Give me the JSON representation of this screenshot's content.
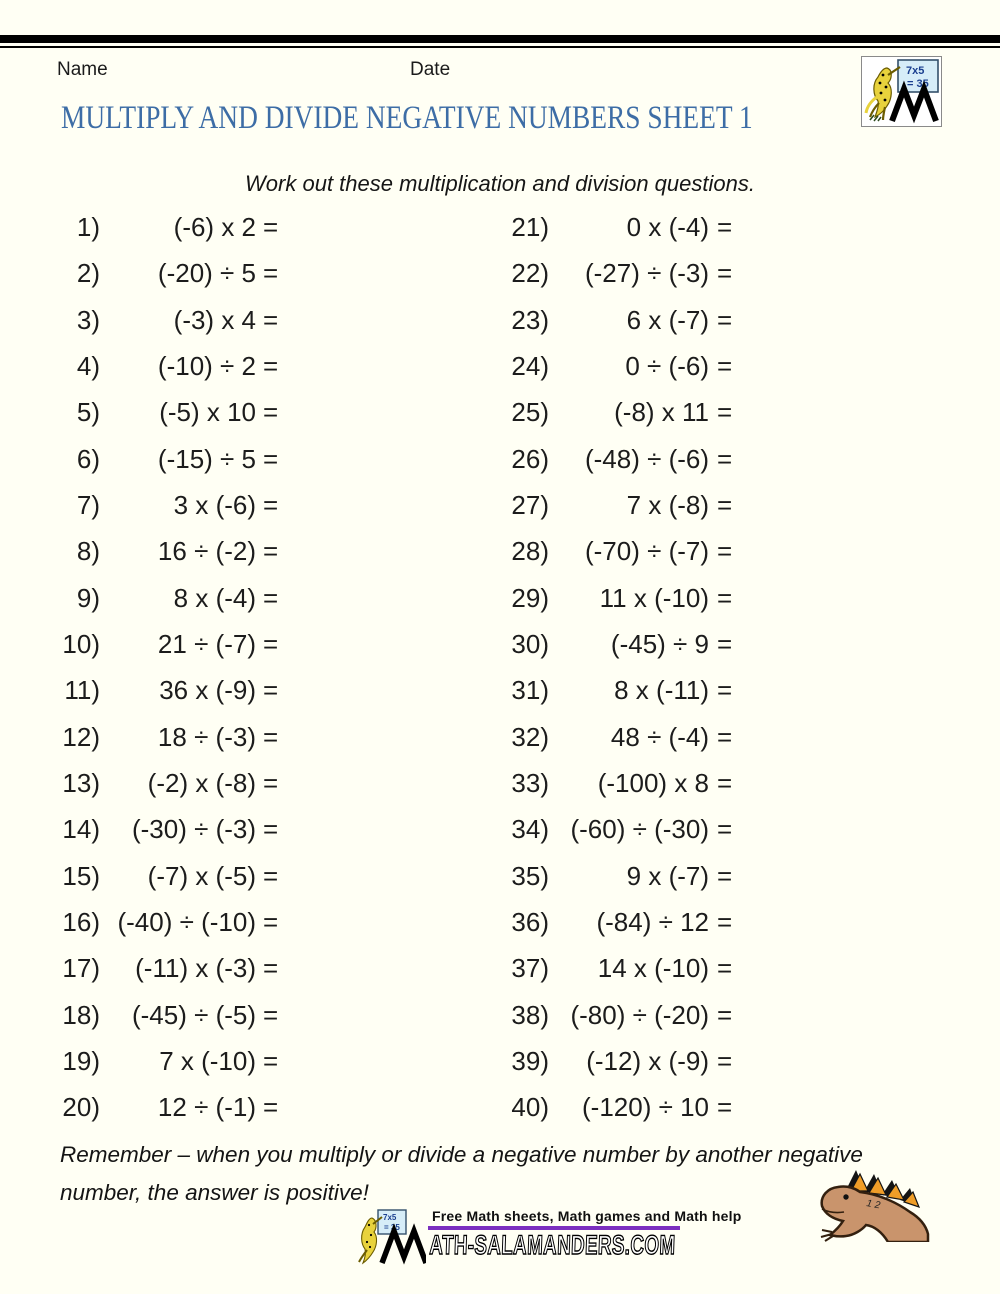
{
  "page": {
    "background": "#fffff4"
  },
  "header": {
    "name_label": "Name",
    "date_label": "Date",
    "title": "MULTIPLY AND DIVIDE NEGATIVE NUMBERS SHEET 1",
    "title_color": "#3d6da6"
  },
  "instruction": "Work out these multiplication and division questions.",
  "logo": {
    "board_top": "7x5",
    "board_bottom": "= 35",
    "salamander_color": "#e8d23c",
    "board_color": "#d6edf8"
  },
  "problems": {
    "equals_sign": "=",
    "left": [
      {
        "num": "1)",
        "expr": "(-6) x 2"
      },
      {
        "num": "2)",
        "expr": "(-20) ÷ 5"
      },
      {
        "num": "3)",
        "expr": "(-3) x 4"
      },
      {
        "num": "4)",
        "expr": "(-10) ÷ 2"
      },
      {
        "num": "5)",
        "expr": "(-5) x 10"
      },
      {
        "num": "6)",
        "expr": "(-15) ÷ 5"
      },
      {
        "num": "7)",
        "expr": "3 x (-6)"
      },
      {
        "num": "8)",
        "expr": "16 ÷ (-2)"
      },
      {
        "num": "9)",
        "expr": "8 x (-4)"
      },
      {
        "num": "10)",
        "expr": "21 ÷ (-7)"
      },
      {
        "num": "11)",
        "expr": "36 x (-9)"
      },
      {
        "num": "12)",
        "expr": "18 ÷ (-3)"
      },
      {
        "num": "13)",
        "expr": "(-2) x (-8)"
      },
      {
        "num": "14)",
        "expr": "(-30) ÷ (-3)"
      },
      {
        "num": "15)",
        "expr": "(-7) x (-5)"
      },
      {
        "num": "16)",
        "expr": "(-40) ÷ (-10)"
      },
      {
        "num": "17)",
        "expr": "(-11) x (-3)"
      },
      {
        "num": "18)",
        "expr": "(-45) ÷ (-5)"
      },
      {
        "num": "19)",
        "expr": "7 x (-10)"
      },
      {
        "num": "20)",
        "expr": "12 ÷ (-1)"
      }
    ],
    "right": [
      {
        "num": "21)",
        "expr": "0 x (-4)"
      },
      {
        "num": "22)",
        "expr": "(-27) ÷ (-3)"
      },
      {
        "num": "23)",
        "expr": "6 x (-7)"
      },
      {
        "num": "24)",
        "expr": "0 ÷ (-6)"
      },
      {
        "num": "25)",
        "expr": "(-8) x 11"
      },
      {
        "num": "26)",
        "expr": "(-48) ÷ (-6)"
      },
      {
        "num": "27)",
        "expr": "7 x (-8)"
      },
      {
        "num": "28)",
        "expr": "(-70) ÷ (-7)"
      },
      {
        "num": "29)",
        "expr": "11 x (-10)"
      },
      {
        "num": "30)",
        "expr": "(-45) ÷ 9"
      },
      {
        "num": "31)",
        "expr": "8 x (-11)"
      },
      {
        "num": "32)",
        "expr": "48 ÷ (-4)"
      },
      {
        "num": "33)",
        "expr": "(-100) x 8"
      },
      {
        "num": "34)",
        "expr": "(-60) ÷ (-30)"
      },
      {
        "num": "35)",
        "expr": "9 x (-7)"
      },
      {
        "num": "36)",
        "expr": "(-84) ÷ 12"
      },
      {
        "num": "37)",
        "expr": "14 x (-10)"
      },
      {
        "num": "38)",
        "expr": "(-80) ÷ (-20)"
      },
      {
        "num": "39)",
        "expr": "(-12) x (-9)"
      },
      {
        "num": "40)",
        "expr": "(-120) ÷ 10"
      }
    ]
  },
  "reminder": {
    "line1": "Remember – when you multiply or divide a negative number by another negative",
    "line2": "number, the answer is positive!"
  },
  "footer": {
    "tagline": "Free Math sheets, Math games and Math help",
    "underline_color": "#7b2fbf",
    "site_text": "ATH-SALAMANDERS.COM"
  },
  "lizard": {
    "marking": "1 2",
    "body_color": "#c9946c",
    "crest_color": "#ef9d28"
  }
}
